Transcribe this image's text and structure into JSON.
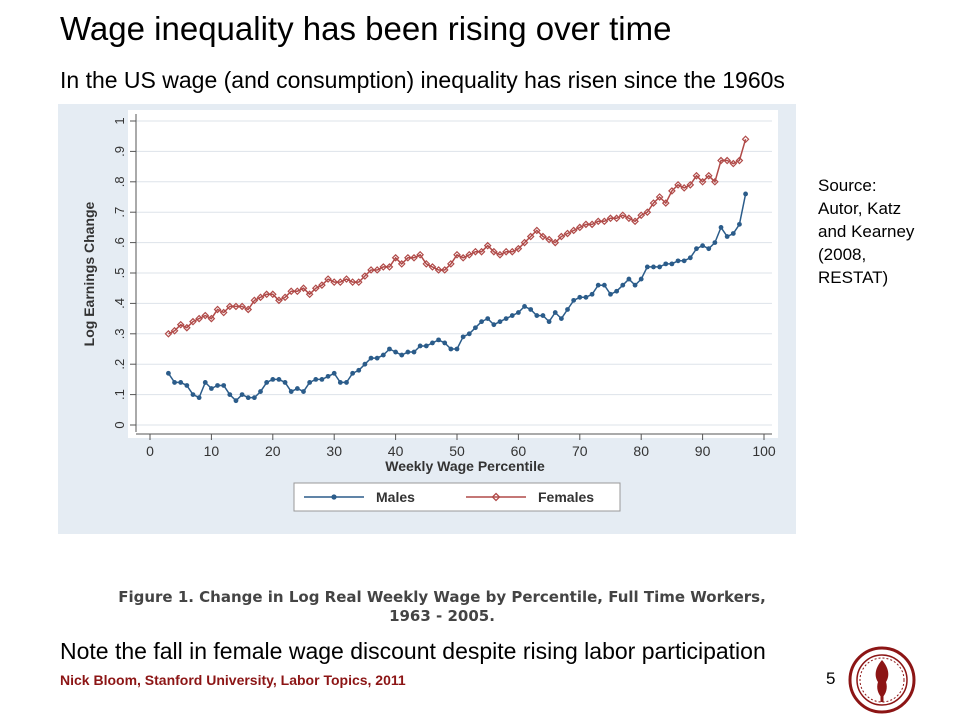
{
  "slide": {
    "title": "Wage inequality has been rising over time",
    "subtitle": "In the US wage (and consumption) inequality has risen since the 1960s",
    "source": [
      "Source:",
      "Autor, Katz",
      "and Kearney",
      "(2008,",
      "RESTAT)"
    ],
    "figure_caption": [
      "Figure 1. Change in Log Real Weekly Wage by Percentile, Full Time Workers,",
      "1963 - 2005."
    ],
    "note": "Note the fall in female wage discount despite rising labor participation",
    "footer": "Nick Bloom, Stanford University, Labor Topics, 2011",
    "page_number": "5"
  },
  "colors": {
    "males": "#2b5c8a",
    "females": "#b04a48",
    "panel_background": "#e5ecf3",
    "footer_text": "#8c1515"
  },
  "chart_data": {
    "type": "line",
    "xlabel": "Weekly Wage Percentile",
    "ylabel": "Log Earnings Change",
    "xlim": [
      0,
      100
    ],
    "ylim": [
      0,
      1
    ],
    "xticks": [
      "0",
      "10",
      "20",
      "30",
      "40",
      "50",
      "60",
      "70",
      "80",
      "90",
      "100"
    ],
    "yticks": [
      "0",
      ".1",
      ".2",
      ".3",
      ".4",
      ".5",
      ".6",
      ".7",
      ".8",
      ".9",
      "1"
    ],
    "grid": true,
    "legend_position": "bottom",
    "x": [
      3,
      4,
      5,
      6,
      7,
      8,
      9,
      10,
      11,
      12,
      13,
      14,
      15,
      16,
      17,
      18,
      19,
      20,
      21,
      22,
      23,
      24,
      25,
      26,
      27,
      28,
      29,
      30,
      31,
      32,
      33,
      34,
      35,
      36,
      37,
      38,
      39,
      40,
      41,
      42,
      43,
      44,
      45,
      46,
      47,
      48,
      49,
      50,
      51,
      52,
      53,
      54,
      55,
      56,
      57,
      58,
      59,
      60,
      61,
      62,
      63,
      64,
      65,
      66,
      67,
      68,
      69,
      70,
      71,
      72,
      73,
      74,
      75,
      76,
      77,
      78,
      79,
      80,
      81,
      82,
      83,
      84,
      85,
      86,
      87,
      88,
      89,
      90,
      91,
      92,
      93,
      94,
      95,
      96,
      97
    ],
    "series": [
      {
        "name": "Males",
        "values": [
          0.17,
          0.14,
          0.14,
          0.13,
          0.1,
          0.09,
          0.14,
          0.12,
          0.13,
          0.13,
          0.1,
          0.08,
          0.1,
          0.09,
          0.09,
          0.11,
          0.14,
          0.15,
          0.15,
          0.14,
          0.11,
          0.12,
          0.11,
          0.14,
          0.15,
          0.15,
          0.16,
          0.17,
          0.14,
          0.14,
          0.17,
          0.18,
          0.2,
          0.22,
          0.22,
          0.23,
          0.25,
          0.24,
          0.23,
          0.24,
          0.24,
          0.26,
          0.26,
          0.27,
          0.28,
          0.27,
          0.25,
          0.25,
          0.29,
          0.3,
          0.32,
          0.34,
          0.35,
          0.33,
          0.34,
          0.35,
          0.36,
          0.37,
          0.39,
          0.38,
          0.36,
          0.36,
          0.34,
          0.37,
          0.35,
          0.38,
          0.41,
          0.42,
          0.42,
          0.43,
          0.46,
          0.46,
          0.43,
          0.44,
          0.46,
          0.48,
          0.46,
          0.48,
          0.52,
          0.52,
          0.52,
          0.53,
          0.53,
          0.54,
          0.54,
          0.55,
          0.58,
          0.59,
          0.58,
          0.6,
          0.65,
          0.62,
          0.63,
          0.66,
          0.76
        ]
      },
      {
        "name": "Females",
        "values": [
          0.3,
          0.31,
          0.33,
          0.32,
          0.34,
          0.35,
          0.36,
          0.35,
          0.38,
          0.37,
          0.39,
          0.39,
          0.39,
          0.38,
          0.41,
          0.42,
          0.43,
          0.43,
          0.41,
          0.42,
          0.44,
          0.44,
          0.45,
          0.43,
          0.45,
          0.46,
          0.48,
          0.47,
          0.47,
          0.48,
          0.47,
          0.47,
          0.49,
          0.51,
          0.51,
          0.52,
          0.52,
          0.55,
          0.53,
          0.55,
          0.55,
          0.56,
          0.53,
          0.52,
          0.51,
          0.51,
          0.53,
          0.56,
          0.55,
          0.56,
          0.57,
          0.57,
          0.59,
          0.57,
          0.56,
          0.57,
          0.57,
          0.58,
          0.6,
          0.62,
          0.64,
          0.62,
          0.61,
          0.6,
          0.62,
          0.63,
          0.64,
          0.65,
          0.66,
          0.66,
          0.67,
          0.67,
          0.68,
          0.68,
          0.69,
          0.68,
          0.67,
          0.69,
          0.7,
          0.73,
          0.75,
          0.73,
          0.77,
          0.79,
          0.78,
          0.79,
          0.82,
          0.8,
          0.82,
          0.8,
          0.87,
          0.87,
          0.86,
          0.87,
          0.94
        ]
      }
    ]
  }
}
